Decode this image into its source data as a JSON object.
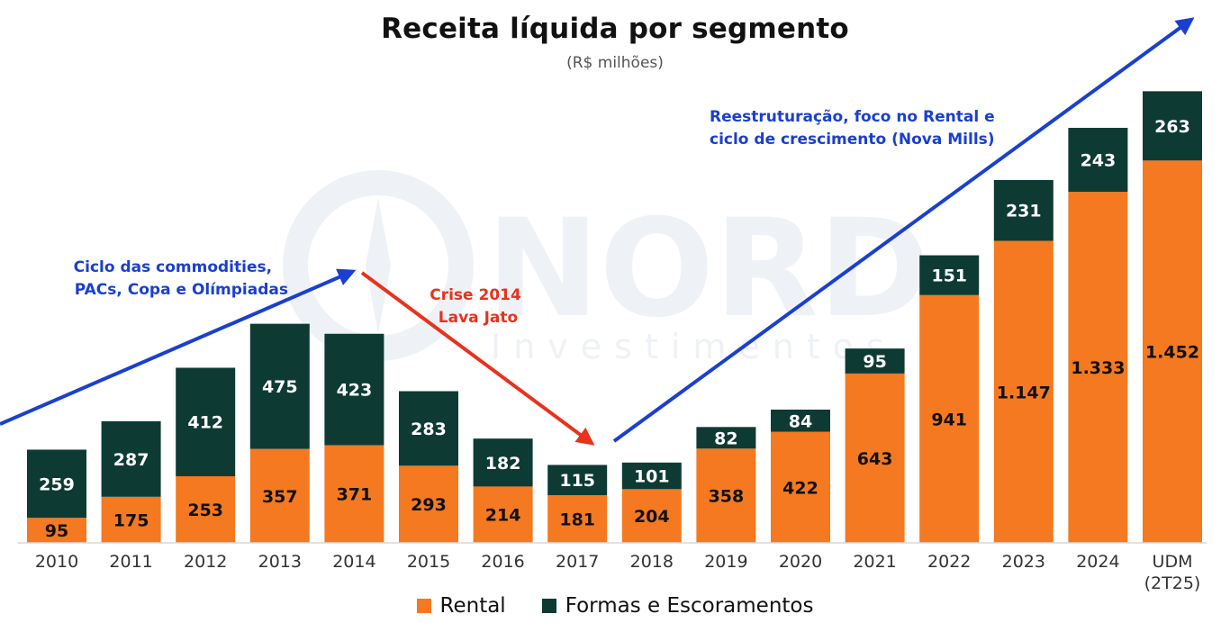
{
  "title": "Receita líquida por segmento",
  "subtitle": "(R$ milhões)",
  "watermark": {
    "brand": "NORD",
    "tagline": "Investimentos"
  },
  "colors": {
    "rental": "#f47920",
    "formas": "#0d3b34",
    "blue_arrow": "#1a3fd1",
    "red_arrow": "#e8321d"
  },
  "annotations": {
    "commodities": [
      "Ciclo das commodities,",
      "PACs, Copa e Olímpiadas"
    ],
    "crise": [
      "Crise 2014",
      "Lava Jato"
    ],
    "reestruturacao": [
      "Reestruturação, foco no Rental e",
      "ciclo de crescimento (Nova Mills)"
    ]
  },
  "chart_data": {
    "type": "bar",
    "stacked": true,
    "title": "Receita líquida por segmento",
    "subtitle": "(R$ milhões)",
    "categories": [
      "2010",
      "2011",
      "2012",
      "2013",
      "2014",
      "2015",
      "2016",
      "2017",
      "2018",
      "2019",
      "2020",
      "2021",
      "2022",
      "2023",
      "2024",
      "UDM (2T25)"
    ],
    "category_lines": [
      [
        "2010"
      ],
      [
        "2011"
      ],
      [
        "2012"
      ],
      [
        "2013"
      ],
      [
        "2014"
      ],
      [
        "2015"
      ],
      [
        "2016"
      ],
      [
        "2017"
      ],
      [
        "2018"
      ],
      [
        "2019"
      ],
      [
        "2020"
      ],
      [
        "2021"
      ],
      [
        "2022"
      ],
      [
        "2023"
      ],
      [
        "2024"
      ],
      [
        "UDM",
        "(2T25)"
      ]
    ],
    "series": [
      {
        "name": "Rental",
        "color": "#f47920",
        "values": [
          95,
          175,
          253,
          357,
          371,
          293,
          214,
          181,
          204,
          358,
          422,
          643,
          941,
          1147,
          1333,
          1452
        ],
        "labels": [
          "95",
          "175",
          "253",
          "357",
          "371",
          "293",
          "214",
          "181",
          "204",
          "358",
          "422",
          "643",
          "941",
          "1.147",
          "1.333",
          "1.452"
        ]
      },
      {
        "name": "Formas e Escoramentos",
        "color": "#0d3b34",
        "values": [
          259,
          287,
          412,
          475,
          423,
          283,
          182,
          115,
          101,
          82,
          84,
          95,
          151,
          231,
          243,
          263
        ],
        "labels": [
          "259",
          "287",
          "412",
          "475",
          "423",
          "283",
          "182",
          "115",
          "101",
          "82",
          "84",
          "95",
          "151",
          "231",
          "243",
          "263"
        ]
      }
    ],
    "ylim": [
      0,
      1800
    ],
    "grid": false,
    "legend": "bottom"
  }
}
